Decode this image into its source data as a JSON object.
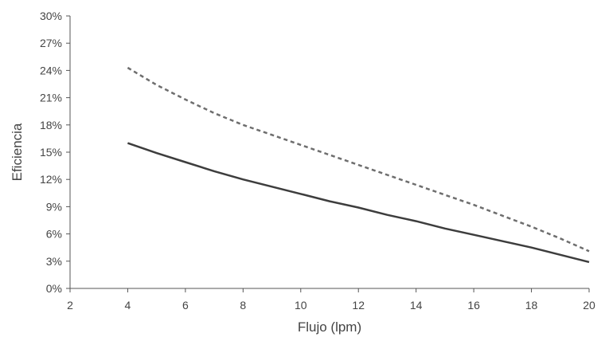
{
  "chart_data": {
    "type": "line",
    "title": "",
    "xlabel": "Flujo (lpm)",
    "ylabel": "Eficiencia",
    "xlim": [
      2,
      20
    ],
    "ylim": [
      0,
      30
    ],
    "x_ticks": [
      "2",
      "4",
      "6",
      "8",
      "10",
      "12",
      "14",
      "16",
      "18",
      "20"
    ],
    "y_ticks": [
      "0%",
      "3%",
      "6%",
      "9%",
      "12%",
      "15%",
      "18%",
      "21%",
      "24%",
      "27%",
      "30%"
    ],
    "grid": false,
    "legend": "none",
    "x": [
      4,
      5,
      6,
      7,
      8,
      9,
      10,
      11,
      12,
      13,
      14,
      15,
      16,
      17,
      18,
      19,
      20
    ],
    "series": [
      {
        "style": "solid",
        "color": "#3d3d3d",
        "values": [
          16.0,
          14.9,
          13.9,
          12.9,
          12.0,
          11.2,
          10.4,
          9.6,
          8.9,
          8.1,
          7.4,
          6.6,
          5.9,
          5.2,
          4.5,
          3.7,
          2.9
        ]
      },
      {
        "style": "dashed",
        "color": "#6e6e6e",
        "values": [
          24.3,
          22.4,
          20.8,
          19.3,
          18.0,
          16.9,
          15.8,
          14.7,
          13.6,
          12.5,
          11.4,
          10.3,
          9.2,
          8.0,
          6.8,
          5.5,
          4.1
        ]
      }
    ]
  }
}
